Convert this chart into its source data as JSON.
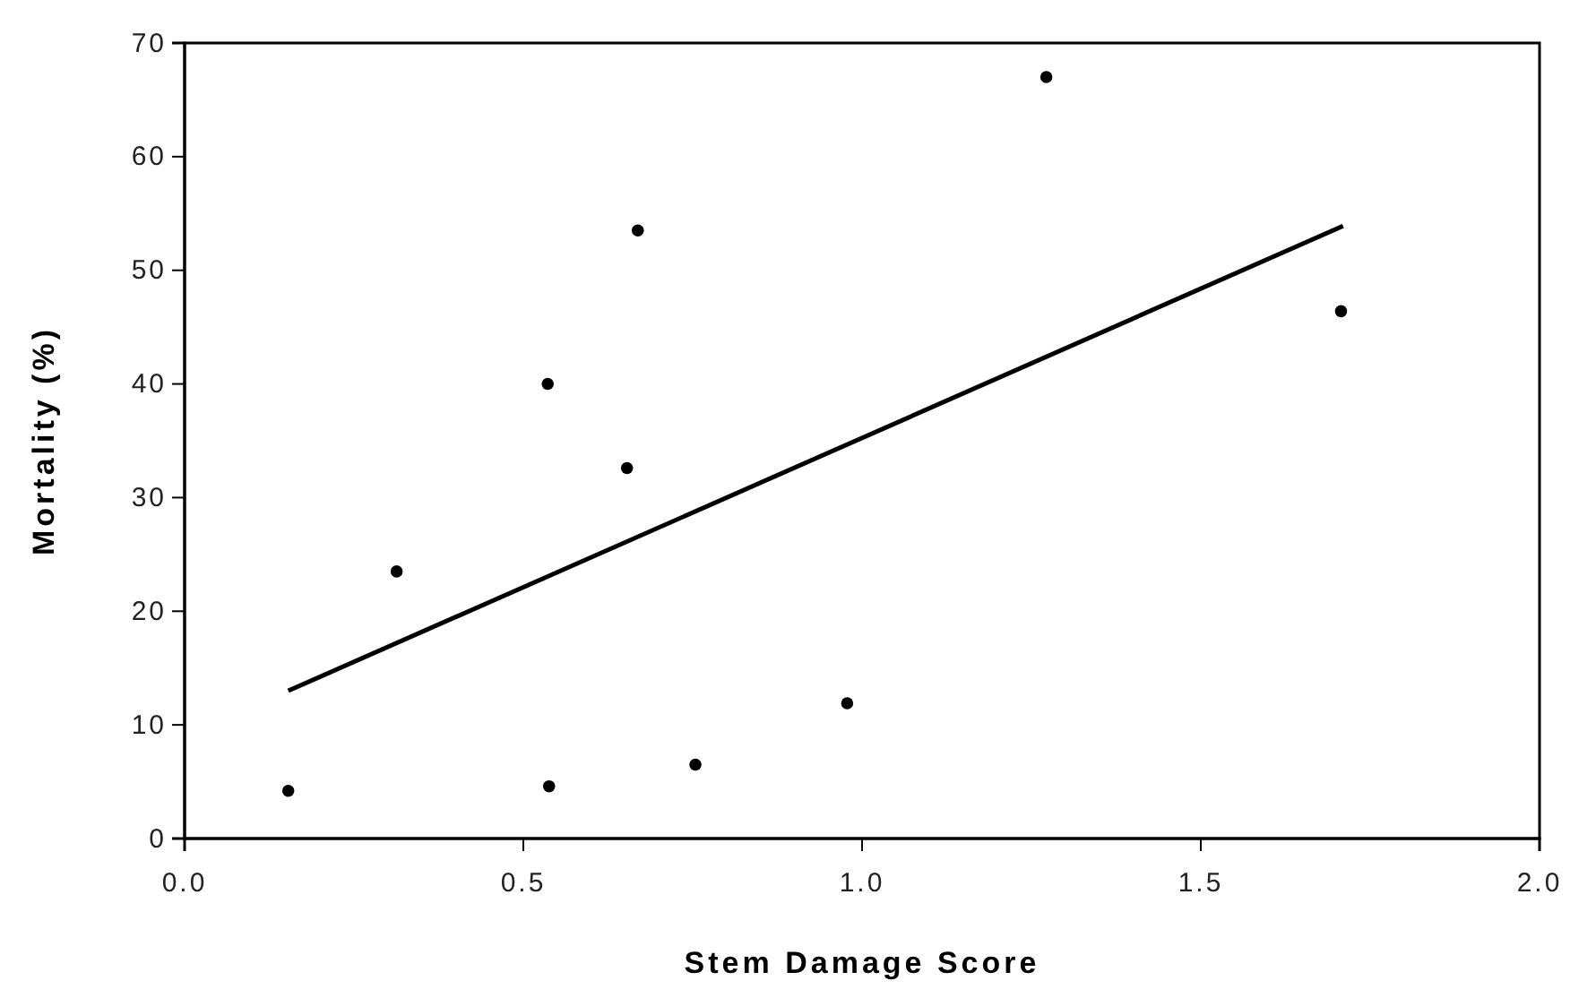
{
  "chart_data": {
    "type": "scatter",
    "xlabel": "Stem Damage Score",
    "ylabel": "Mortality (%)",
    "xlim": [
      0,
      2
    ],
    "xticks": [
      {
        "value": 0,
        "label": "0.0"
      },
      {
        "value": 0.5,
        "label": "0.5"
      },
      {
        "value": 1,
        "label": "1.0"
      },
      {
        "value": 1.5,
        "label": "1.5"
      },
      {
        "value": 2,
        "label": "2.0"
      }
    ],
    "ylim": [
      0,
      70
    ],
    "yticks": [
      0,
      10,
      20,
      30,
      40,
      50,
      60,
      70
    ],
    "grid": false,
    "marker": "circle",
    "series": [
      {
        "color": "#000000",
        "x": [
          0.153,
          0.313,
          0.536,
          0.538,
          0.653,
          0.669,
          0.754,
          0.978,
          1.272,
          1.707
        ],
        "values": [
          4.2,
          23.5,
          40.0,
          4.6,
          32.6,
          53.5,
          6.5,
          11.9,
          67.0,
          46.4
        ]
      },
      {
        "type": "line",
        "color": "#000000",
        "line_style": "solid",
        "marker": "none",
        "x": [
          0.153,
          1.71
        ],
        "values": [
          13.0,
          53.9
        ]
      }
    ]
  }
}
